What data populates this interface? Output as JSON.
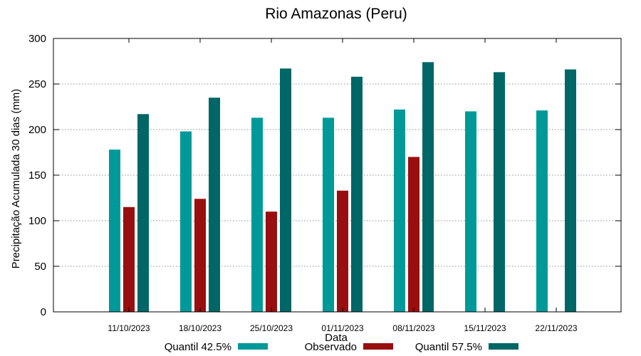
{
  "chart_data": {
    "type": "bar",
    "title": "Rio Amazonas (Peru)",
    "xlabel": "Data",
    "ylabel": "Precipitação Acumulada 30 dias (mm)",
    "ylim": [
      0,
      300
    ],
    "yticks": [
      0,
      50,
      100,
      150,
      200,
      250,
      300
    ],
    "grid": "horizontal dotted",
    "categories": [
      "11/10/2023",
      "18/10/2023",
      "25/10/2023",
      "01/11/2023",
      "08/11/2023",
      "15/11/2023",
      "22/11/2023"
    ],
    "series": [
      {
        "name": "Quantil 42.5%",
        "color": "#009999",
        "values": [
          178,
          198,
          213,
          213,
          222,
          220,
          221
        ]
      },
      {
        "name": "Observado",
        "color": "#990f0f",
        "values": [
          115,
          124,
          110,
          133,
          170,
          null,
          null
        ]
      },
      {
        "name": "Quantil 57.5%",
        "color": "#006666",
        "values": [
          217,
          235,
          267,
          258,
          274,
          263,
          266
        ]
      }
    ],
    "legend_position": "bottom"
  }
}
